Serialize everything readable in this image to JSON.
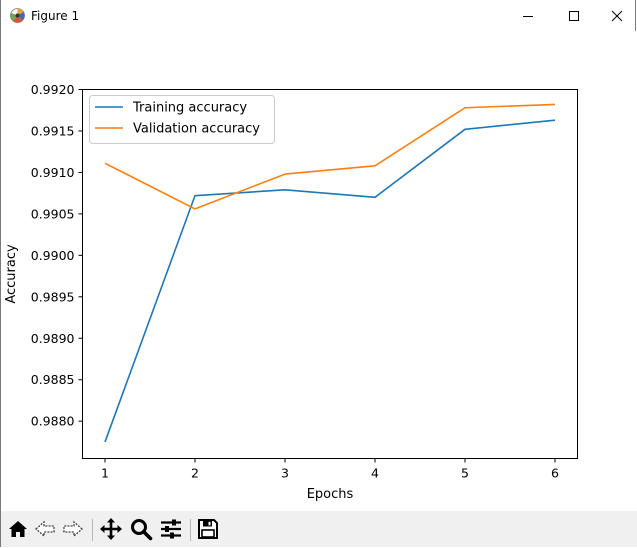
{
  "window": {
    "title": "Figure 1"
  },
  "toolbar": {
    "buttons": [
      {
        "name": "home",
        "icon": "home-icon"
      },
      {
        "name": "back",
        "icon": "back-arrow-icon"
      },
      {
        "name": "forward",
        "icon": "forward-arrow-icon"
      },
      {
        "name": "pan",
        "icon": "pan-move-icon"
      },
      {
        "name": "zoom",
        "icon": "zoom-magnifier-icon"
      },
      {
        "name": "configure-subplots",
        "icon": "sliders-icon"
      },
      {
        "name": "save",
        "icon": "save-disk-icon"
      }
    ]
  },
  "chart_data": {
    "type": "line",
    "title": "",
    "xlabel": "Epochs",
    "ylabel": "Accuracy",
    "x": [
      1,
      2,
      3,
      4,
      5,
      6
    ],
    "xticks": [
      "1",
      "2",
      "3",
      "4",
      "5",
      "6"
    ],
    "yticks": [
      "0.9880",
      "0.9885",
      "0.9890",
      "0.9895",
      "0.9900",
      "0.9905",
      "0.9910",
      "0.9915",
      "0.9920"
    ],
    "xlim": [
      0.75,
      6.25
    ],
    "ylim": [
      0.98755,
      0.992
    ],
    "grid": false,
    "legend_position": "upper-left",
    "series": [
      {
        "name": "Training accuracy",
        "color": "#1f77b4",
        "values": [
          0.98775,
          0.99072,
          0.99079,
          0.9907,
          0.99152,
          0.99163
        ]
      },
      {
        "name": "Validation accuracy",
        "color": "#ff7f0e",
        "values": [
          0.99111,
          0.99056,
          0.99098,
          0.99108,
          0.99178,
          0.99182
        ]
      }
    ]
  }
}
